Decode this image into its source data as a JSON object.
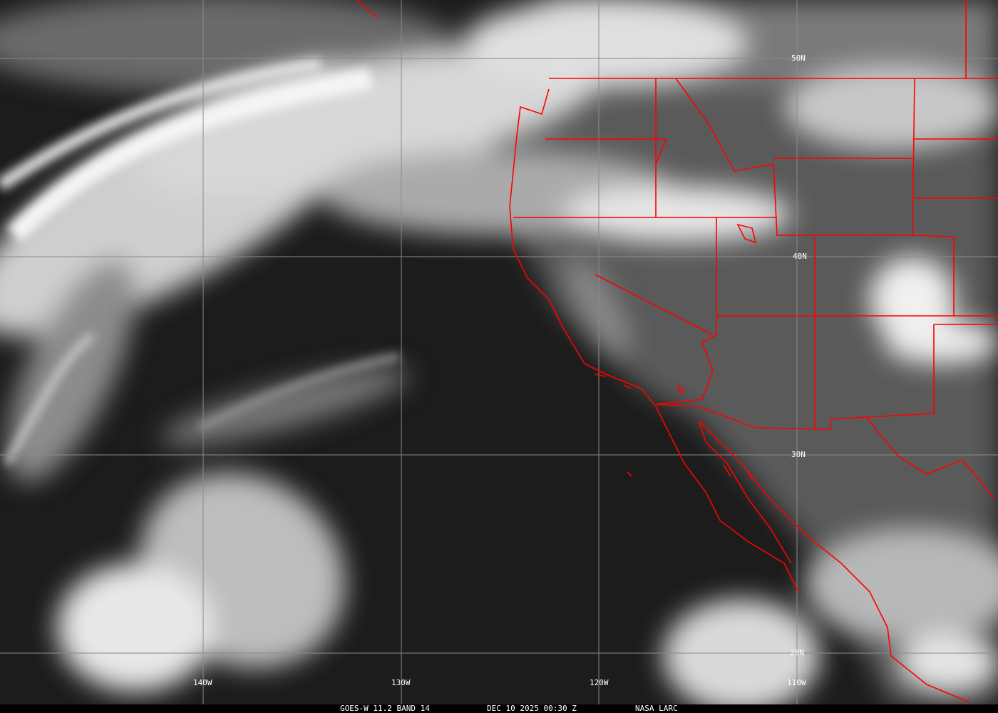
{
  "image": {
    "satellite_label": "GOES-W 11.2 BAND 14",
    "datetime": "DEC 10 2025 00:30 Z",
    "credit": "NASA LARC"
  },
  "grid": {
    "latitudes": [
      "50N",
      "40N",
      "30N",
      "20N"
    ],
    "longitudes": [
      "140W",
      "130W",
      "120W",
      "110W"
    ]
  },
  "colors": {
    "borders": "#ff0000",
    "grid": "#8a8a8a",
    "ocean_clear": "#1c1c1c",
    "cloud": "#f2f2f2"
  }
}
